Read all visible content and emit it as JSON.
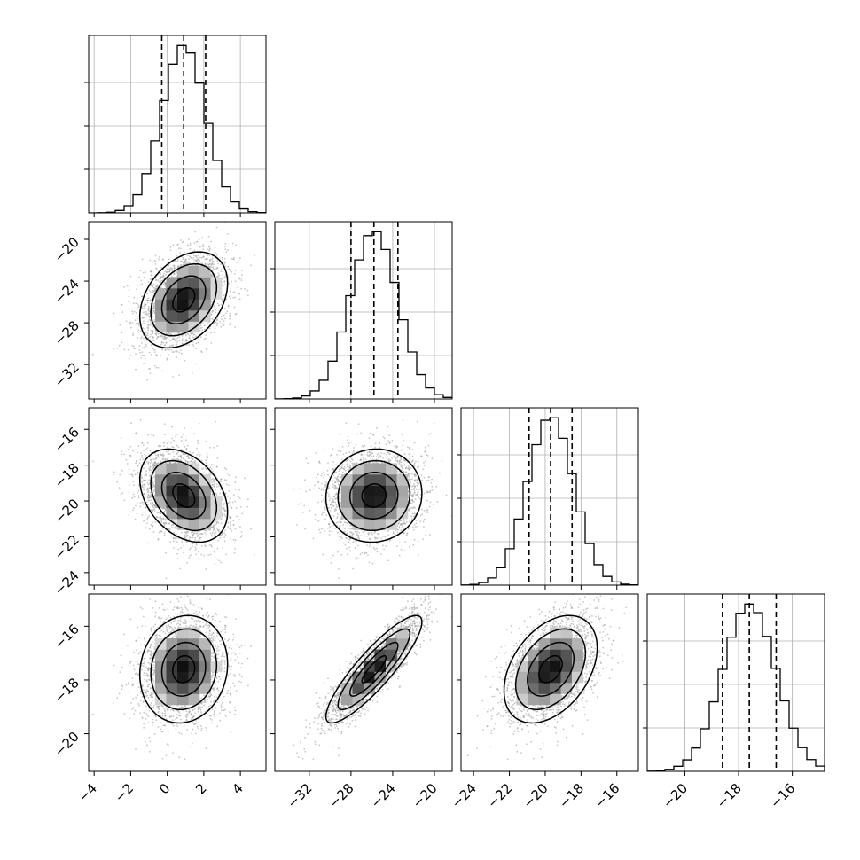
{
  "chart_data": {
    "type": "corner",
    "title": "",
    "parameters": [
      {
        "name": "p1",
        "label": "",
        "range": [
          -4.3,
          5.4
        ],
        "ticks": [
          -4,
          -2,
          0,
          2,
          4
        ],
        "tick_labels": [
          "−4",
          "−2",
          "0",
          "2",
          "4"
        ],
        "mean": 0.9,
        "std": 1.2,
        "quantiles": [
          -0.3,
          0.9,
          2.1
        ]
      },
      {
        "name": "p2",
        "label": "",
        "range": [
          -35.3,
          -18.3
        ],
        "ticks": [
          -32,
          -28,
          -24,
          -20
        ],
        "tick_labels": [
          "−32",
          "−28",
          "−24",
          "−20"
        ],
        "mean": -25.8,
        "std": 2.3,
        "quantiles": [
          -28.0,
          -25.8,
          -23.5
        ]
      },
      {
        "name": "p3",
        "label": "",
        "range": [
          -24.7,
          -14.8
        ],
        "ticks": [
          -24,
          -22,
          -20,
          -18,
          -16
        ],
        "tick_labels": [
          "−24",
          "−22",
          "−20",
          "−18",
          "−16"
        ],
        "mean": -19.7,
        "std": 1.3,
        "quantiles": [
          -20.9,
          -19.7,
          -18.5
        ]
      },
      {
        "name": "p4",
        "label": "",
        "range": [
          -21.4,
          -14.8
        ],
        "ticks": [
          -20,
          -18,
          -16
        ],
        "tick_labels": [
          "−20",
          "−18",
          "−16"
        ],
        "mean": -17.6,
        "std": 1.0,
        "quantiles": [
          -18.6,
          -17.6,
          -16.6
        ]
      }
    ],
    "correlations": [
      [
        1.0,
        0.35,
        -0.35,
        0.1
      ],
      [
        0.35,
        1.0,
        0.05,
        0.88
      ],
      [
        -0.35,
        0.05,
        1.0,
        0.4
      ],
      [
        0.1,
        0.88,
        0.4,
        1.0
      ]
    ],
    "histogram_bins": 20,
    "contour_levels": [
      0.118,
      0.393,
      0.675,
      0.865
    ],
    "show_quantile_lines": true,
    "grid": true,
    "colors": {
      "points": "#9a9a9a",
      "lines": "#000000",
      "grid": "#b0b0b0",
      "frame": "#000000"
    }
  }
}
